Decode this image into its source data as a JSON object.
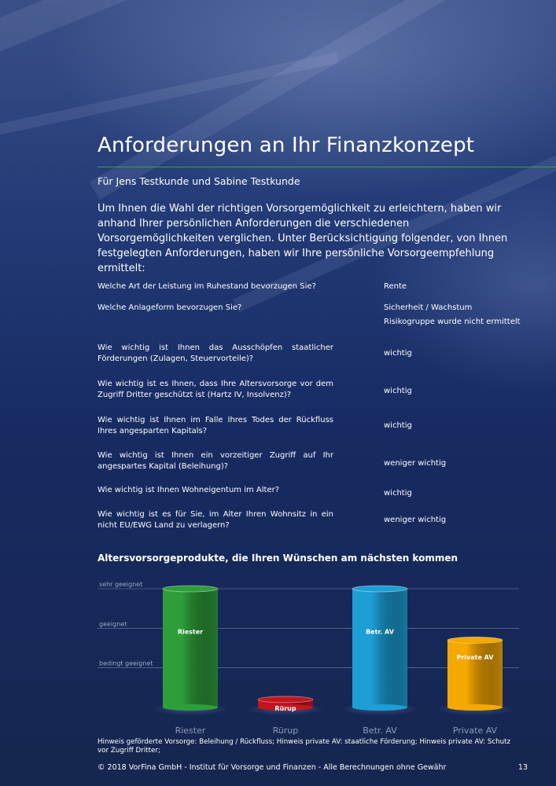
{
  "header": {
    "title": "Anforderungen an Ihr Finanzkonzept",
    "subtitle": "Für Jens Testkunde und Sabine Testkunde",
    "intro": "Um Ihnen die Wahl der richtigen Vorsorgemöglichkeit zu erleichtern, haben wir anhand Ihrer persönlichen Anforderungen die verschiedenen Vorsorgemöglichkeiten verglichen. Unter Berücksichtigung folgender, von Ihnen festgelegten Anforderungen, haben wir Ihre persönliche Vorsorgeempfehlung ermittelt:"
  },
  "requirements": [
    {
      "question": "Welche Art der Leistung im Ruhestand bevorzugen Sie?",
      "answer": "Rente"
    },
    {
      "question": "Welche Anlageform bevorzugen Sie?",
      "answer": "Sicherheit / Wachstum",
      "answer_note": "Risikogruppe wurde nicht ermittelt"
    },
    {
      "question": "Wie wichtig ist Ihnen das Ausschöpfen staatlicher Förderungen (Zulagen, Steuervorteile)?",
      "answer": "wichtig"
    },
    {
      "question": "Wie wichtig ist es Ihnen, dass Ihre Altersvorsorge vor dem Zugriff Dritter geschützt ist (Hartz IV, Insolvenz)?",
      "answer": "wichtig"
    },
    {
      "question": "Wie wichtig ist Ihnen im Falle Ihres Todes der Rückfluss Ihres angesparten Kapitals?",
      "answer": "wichtig"
    },
    {
      "question": "Wie wichtig ist Ihnen ein vorzeitiger Zugriff auf Ihr angespartes Kapital (Beleihung)?",
      "answer": "weniger wichtig"
    },
    {
      "question": "Wie wichtig ist Ihnen Wohneigentum im Alter?",
      "answer": "wichtig"
    },
    {
      "question": "Wie wichtig ist es für Sie, im Alter Ihren Wohnsitz in ein nicht EU/EWG Land zu verlagern?",
      "answer": "weniger wichtig"
    }
  ],
  "section_title": "Altersvorsorgeprodukte, die Ihren Wünschen am nächsten kommen",
  "chart_data": {
    "type": "bar",
    "title": "",
    "categories": [
      "Riester",
      "Rürup",
      "Betr. AV",
      "Private AV"
    ],
    "values": [
      3,
      0.2,
      3,
      1.7
    ],
    "bar_labels": [
      "Riester",
      "Rürup",
      "Betr. AV",
      "Private AV"
    ],
    "y_levels": [
      {
        "label": "bedingt geeignet",
        "value": 1
      },
      {
        "label": "geeignet",
        "value": 2
      },
      {
        "label": "sehr geeignet",
        "value": 3
      }
    ],
    "ylim": [
      0,
      3
    ],
    "colors": [
      "#2e9e3a",
      "#c4151f",
      "#1d9fd6",
      "#f5a800"
    ],
    "grid": true
  },
  "footnote": "Hinweis geförderte Vorsorge: Beleihung / Rückfluss; Hinweis private AV: staatliche Förderung; Hinweis private AV: Schutz vor Zugriff Dritter;",
  "footer": {
    "copyright": "© 2018 VorFina GmbH - Institut für Vorsorge und Finanzen - Alle Berechnungen ohne Gewähr",
    "page_number": "13"
  }
}
